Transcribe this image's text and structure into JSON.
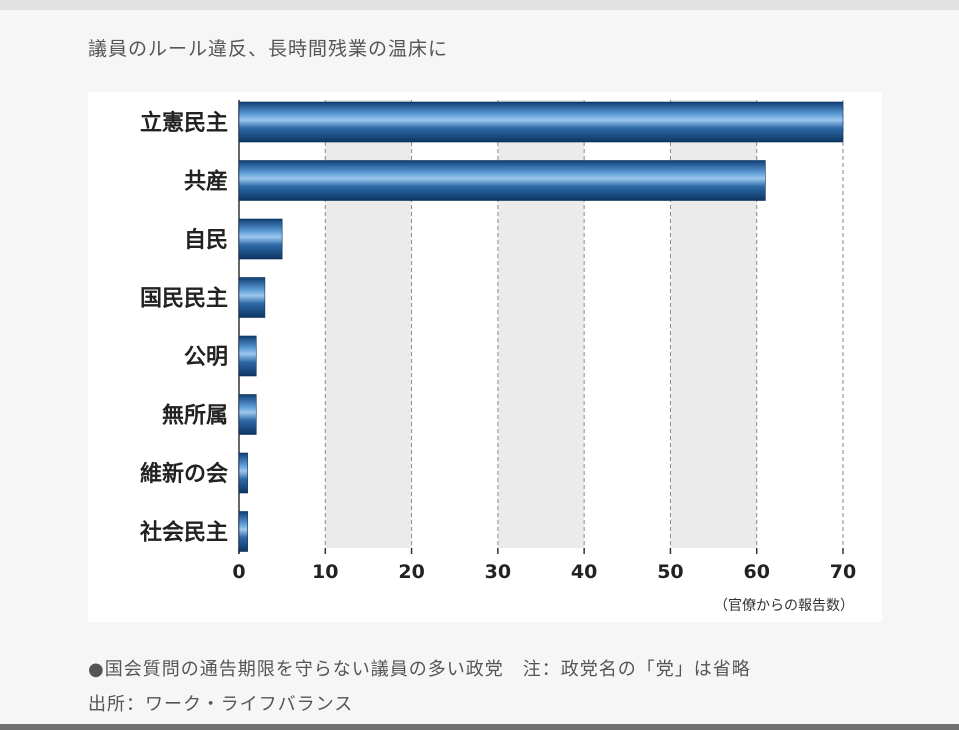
{
  "headline": "議員のルール違反、長時間残業の温床に",
  "chart_data": {
    "type": "bar",
    "orientation": "horizontal",
    "categories": [
      "立憲民主",
      "共産",
      "自民",
      "国民民主",
      "公明",
      "無所属",
      "維新の会",
      "社会民主"
    ],
    "values": [
      70,
      61,
      5,
      3,
      2,
      2,
      1,
      1
    ],
    "xlim": [
      0,
      70
    ],
    "xticks": [
      0,
      10,
      20,
      30,
      40,
      50,
      60,
      70
    ],
    "xlabel": "（官僚からの報告数）",
    "grid": "vertical dashed",
    "bar_color": "#2e6aa8"
  },
  "footer": {
    "note": "●国会質問の通告期限を守らない議員の多い政党　注：政党名の「党」は省略",
    "source": "出所：ワーク・ライフバランス"
  }
}
